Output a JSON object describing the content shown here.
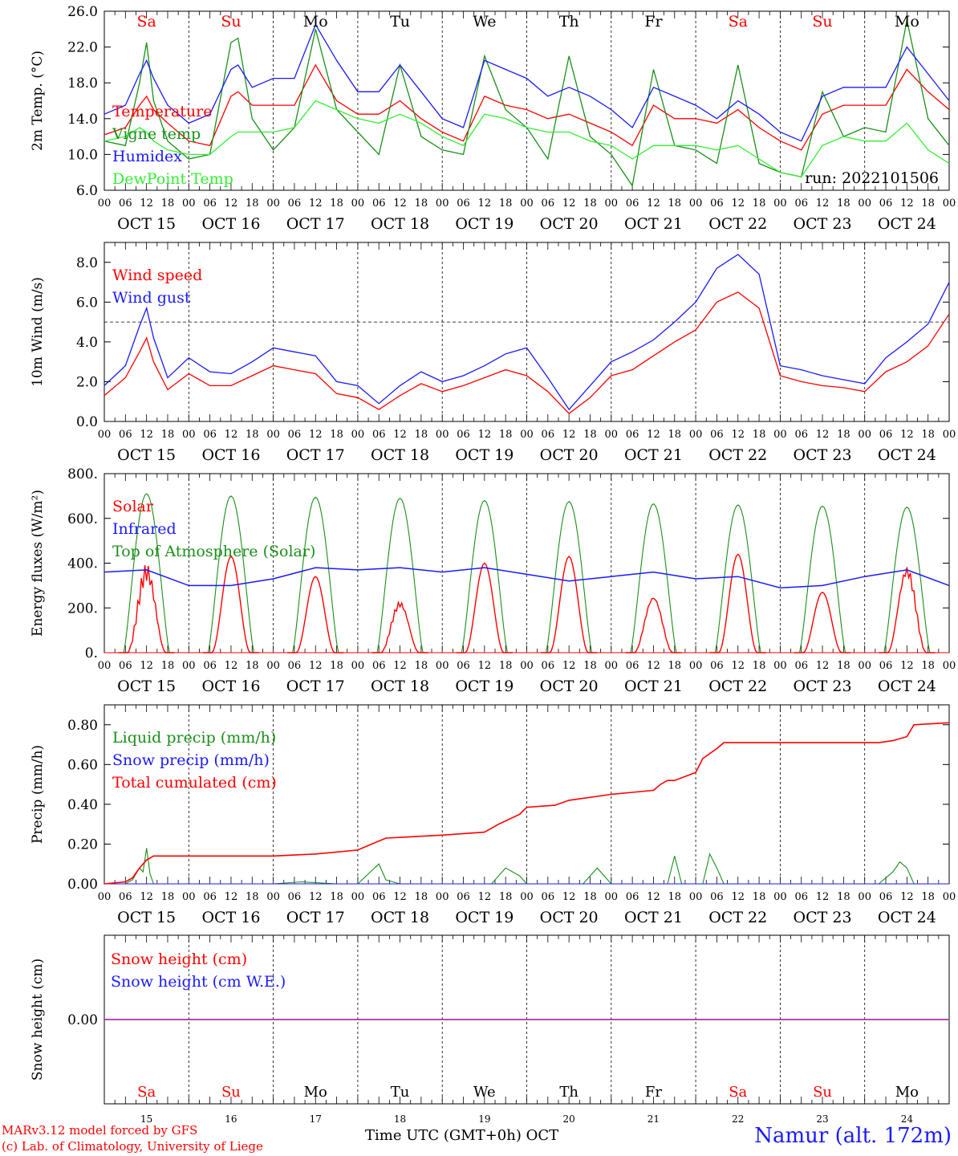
{
  "run_label": "run: 2022101506",
  "days": [
    {
      "abbr": "Sa",
      "weekend": true,
      "date": "OCT 15",
      "num": "15"
    },
    {
      "abbr": "Su",
      "weekend": true,
      "date": "OCT 16",
      "num": "16"
    },
    {
      "abbr": "Mo",
      "weekend": false,
      "date": "OCT 17",
      "num": "17"
    },
    {
      "abbr": "Tu",
      "weekend": false,
      "date": "OCT 18",
      "num": "18"
    },
    {
      "abbr": "We",
      "weekend": false,
      "date": "OCT 19",
      "num": "19"
    },
    {
      "abbr": "Th",
      "weekend": false,
      "date": "OCT 20",
      "num": "20"
    },
    {
      "abbr": "Fr",
      "weekend": false,
      "date": "OCT 21",
      "num": "21"
    },
    {
      "abbr": "Sa",
      "weekend": true,
      "date": "OCT 22",
      "num": "22"
    },
    {
      "abbr": "Su",
      "weekend": true,
      "date": "OCT 23",
      "num": "23"
    },
    {
      "abbr": "Mo",
      "weekend": false,
      "date": "OCT 24",
      "num": "24"
    }
  ],
  "hour_ticks": [
    "00",
    "06",
    "12",
    "18"
  ],
  "final_hour_tick": "00",
  "x_title": "Time UTC (GMT+0h)",
  "x_month": "OCT",
  "credits": [
    "MARv3.12 model forced by GFS",
    "(c) Lab. of Climatology, University of Liege"
  ],
  "station": "Namur (alt. 172m)",
  "colors": {
    "red": "#ff0000",
    "green": "#1a8f1a",
    "blue": "#1a1aff",
    "lightgreen": "#33ee33",
    "purple": "#aa33aa",
    "weekend": "#ff0000"
  },
  "chart_data": [
    {
      "type": "line",
      "id": "temp",
      "ylabel": "2m Temp. (°C)",
      "ylim": [
        6,
        26
      ],
      "yticks": [
        "6.0",
        "10.0",
        "14.0",
        "18.0",
        "22.0",
        "26.0"
      ],
      "x_unit": "hours from Oct 15 00 UTC",
      "x_range": [
        0,
        240
      ],
      "series": [
        {
          "name": "Temperature",
          "color": "red",
          "x": [
            0,
            6,
            10,
            12,
            14,
            18,
            24,
            30,
            36,
            38,
            42,
            48,
            54,
            60,
            66,
            72,
            78,
            84,
            90,
            96,
            102,
            108,
            114,
            120,
            126,
            132,
            138,
            144,
            150,
            156,
            162,
            168,
            174,
            180,
            186,
            192,
            198,
            204,
            210,
            216,
            222,
            228,
            234,
            240
          ],
          "y": [
            12.2,
            13.0,
            15.5,
            16.5,
            15.0,
            13.5,
            11.5,
            11.0,
            16.5,
            17.0,
            15.5,
            15.5,
            15.5,
            20.0,
            16.0,
            14.5,
            14.5,
            16.0,
            14.0,
            12.5,
            11.5,
            16.5,
            15.5,
            15.0,
            14.0,
            14.5,
            13.5,
            12.5,
            11.0,
            15.5,
            14.0,
            14.0,
            13.5,
            15.0,
            13.0,
            11.5,
            10.5,
            14.5,
            15.5,
            15.5,
            15.5,
            19.5,
            17.0,
            15.0
          ]
        },
        {
          "name": "Vigne temp",
          "color": "green",
          "x": [
            0,
            6,
            10,
            12,
            14,
            18,
            24,
            30,
            36,
            38,
            42,
            48,
            54,
            60,
            66,
            72,
            78,
            84,
            90,
            96,
            102,
            108,
            114,
            120,
            126,
            132,
            138,
            144,
            150,
            156,
            162,
            168,
            174,
            180,
            186,
            192,
            198,
            204,
            210,
            216,
            222,
            228,
            234,
            240
          ],
          "y": [
            11.5,
            11.0,
            18.0,
            22.5,
            16.0,
            11.5,
            9.5,
            10.0,
            22.5,
            23.0,
            14.0,
            10.5,
            13.0,
            24.0,
            15.0,
            12.5,
            10.0,
            20.0,
            12.0,
            10.5,
            10.0,
            21.0,
            15.0,
            13.0,
            9.5,
            21.0,
            12.0,
            10.0,
            6.5,
            19.5,
            11.0,
            10.5,
            9.0,
            20.0,
            9.0,
            8.0,
            7.5,
            17.0,
            12.0,
            13.0,
            12.5,
            25.0,
            14.0,
            11.0
          ]
        },
        {
          "name": "Humidex",
          "color": "blue",
          "x": [
            0,
            6,
            10,
            12,
            14,
            18,
            24,
            30,
            36,
            38,
            42,
            48,
            54,
            60,
            66,
            72,
            78,
            84,
            90,
            96,
            102,
            108,
            114,
            120,
            126,
            132,
            138,
            144,
            150,
            156,
            162,
            168,
            174,
            180,
            186,
            192,
            198,
            204,
            210,
            216,
            222,
            228,
            234,
            240
          ],
          "y": [
            14.5,
            15.5,
            19.0,
            20.5,
            18.5,
            15.5,
            13.5,
            14.5,
            19.5,
            20.0,
            17.5,
            18.5,
            18.5,
            24.5,
            20.5,
            17.0,
            17.0,
            20.0,
            17.0,
            14.0,
            13.0,
            20.5,
            19.5,
            18.5,
            16.5,
            17.5,
            16.5,
            15.0,
            13.0,
            17.5,
            16.5,
            15.5,
            14.0,
            16.0,
            14.5,
            12.5,
            11.5,
            16.5,
            17.5,
            17.5,
            17.5,
            22.0,
            19.0,
            16.0
          ]
        },
        {
          "name": "DewPoint Temp",
          "color": "lightgreen",
          "x": [
            0,
            6,
            10,
            12,
            14,
            18,
            24,
            30,
            36,
            38,
            42,
            48,
            54,
            60,
            66,
            72,
            78,
            84,
            90,
            96,
            102,
            108,
            114,
            120,
            126,
            132,
            138,
            144,
            150,
            156,
            162,
            168,
            174,
            180,
            186,
            192,
            198,
            204,
            210,
            216,
            222,
            228,
            234,
            240
          ],
          "y": [
            11.5,
            12.0,
            13.0,
            12.5,
            11.5,
            10.5,
            10.0,
            10.0,
            12.0,
            12.5,
            12.5,
            12.5,
            13.0,
            16.0,
            15.0,
            14.0,
            13.5,
            14.5,
            13.5,
            12.0,
            11.0,
            14.5,
            14.0,
            13.0,
            12.5,
            12.5,
            11.5,
            11.0,
            9.5,
            11.0,
            11.0,
            11.0,
            10.5,
            11.0,
            9.5,
            8.0,
            7.5,
            11.0,
            12.0,
            11.5,
            11.5,
            13.5,
            10.5,
            9.0
          ]
        }
      ]
    },
    {
      "type": "line",
      "id": "wind",
      "ylabel": "10m Wind (m/s)",
      "ylim": [
        0,
        9
      ],
      "yticks": [
        "0.0",
        "2.0",
        "4.0",
        "6.0",
        "8.0"
      ],
      "reference_line": 5,
      "x_unit": "hours from Oct 15 00 UTC",
      "x_range": [
        0,
        240
      ],
      "series": [
        {
          "name": "Wind speed",
          "color": "red",
          "x": [
            0,
            6,
            10,
            12,
            14,
            18,
            24,
            30,
            36,
            42,
            48,
            54,
            60,
            66,
            72,
            78,
            84,
            90,
            96,
            102,
            108,
            114,
            120,
            126,
            132,
            138,
            144,
            150,
            156,
            162,
            168,
            174,
            180,
            186,
            192,
            198,
            204,
            210,
            216,
            222,
            228,
            234,
            240
          ],
          "y": [
            1.3,
            2.2,
            3.5,
            4.2,
            3.0,
            1.6,
            2.4,
            1.8,
            1.8,
            2.3,
            2.8,
            2.6,
            2.4,
            1.4,
            1.2,
            0.6,
            1.3,
            1.9,
            1.5,
            1.8,
            2.2,
            2.6,
            2.3,
            1.5,
            0.4,
            1.2,
            2.3,
            2.6,
            3.3,
            4.0,
            4.6,
            6.0,
            6.5,
            5.7,
            2.3,
            2.0,
            1.8,
            1.7,
            1.5,
            2.5,
            3.0,
            3.8,
            5.4
          ]
        },
        {
          "name": "Wind gust",
          "color": "blue",
          "x": [
            0,
            6,
            10,
            12,
            14,
            18,
            24,
            30,
            36,
            42,
            48,
            54,
            60,
            66,
            72,
            78,
            84,
            90,
            96,
            102,
            108,
            114,
            120,
            126,
            132,
            138,
            144,
            150,
            156,
            162,
            168,
            174,
            180,
            186,
            192,
            198,
            204,
            210,
            216,
            222,
            228,
            234,
            240
          ],
          "y": [
            1.8,
            2.8,
            4.8,
            5.7,
            4.2,
            2.2,
            3.2,
            2.5,
            2.4,
            3.0,
            3.7,
            3.5,
            3.3,
            2.0,
            1.8,
            0.9,
            1.8,
            2.5,
            2.0,
            2.3,
            2.8,
            3.4,
            3.7,
            2.2,
            0.6,
            1.8,
            3.0,
            3.5,
            4.1,
            5.0,
            6.0,
            7.7,
            8.4,
            7.4,
            2.8,
            2.6,
            2.3,
            2.1,
            1.9,
            3.2,
            4.0,
            4.9,
            7.0
          ]
        }
      ]
    },
    {
      "type": "line",
      "id": "energy",
      "ylabel": "Energy fluxes (W/m²)",
      "ylim": [
        0,
        800
      ],
      "yticks": [
        "0.",
        "200.",
        "400.",
        "600.",
        "800."
      ],
      "x_unit": "hours from Oct 15 00 UTC",
      "x_range": [
        0,
        240
      ],
      "solar_peaks": [
        420,
        430,
        340,
        250,
        400,
        430,
        280,
        440,
        270,
        420
      ],
      "toa_peaks": [
        710,
        700,
        695,
        690,
        680,
        675,
        665,
        660,
        655,
        650
      ],
      "series": [
        {
          "name": "Solar",
          "color": "red"
        },
        {
          "name": "Infrared",
          "color": "blue",
          "x": [
            0,
            12,
            24,
            36,
            48,
            60,
            72,
            84,
            96,
            108,
            120,
            132,
            144,
            156,
            168,
            180,
            192,
            204,
            216,
            228,
            240
          ],
          "y": [
            360,
            370,
            300,
            300,
            330,
            380,
            370,
            380,
            360,
            380,
            350,
            320,
            340,
            360,
            330,
            340,
            290,
            300,
            340,
            370,
            300
          ]
        },
        {
          "name": "Top of Atmosphere (Solar)",
          "color": "green"
        }
      ]
    },
    {
      "type": "line",
      "id": "precip",
      "ylabel": "Precip (mm/h)",
      "ylim": [
        0,
        0.9
      ],
      "yticks": [
        "0.00",
        "0.20",
        "0.40",
        "0.60",
        "0.80"
      ],
      "x_unit": "hours from Oct 15 00 UTC",
      "x_range": [
        0,
        240
      ],
      "series": [
        {
          "name": "Liquid precip (mm/h)",
          "color": "green",
          "x": [
            0,
            6,
            8,
            10,
            11,
            12,
            13,
            14,
            16,
            48,
            56,
            66,
            72,
            78,
            80,
            84,
            110,
            114,
            118,
            120,
            136,
            140,
            144,
            160,
            162,
            164,
            170,
            172,
            174,
            176,
            210,
            220,
            224,
            226,
            228,
            230,
            240
          ],
          "y": [
            0,
            0,
            0.02,
            0.08,
            0.06,
            0.18,
            0.05,
            0,
            0,
            0,
            0.01,
            0,
            0,
            0.1,
            0.02,
            0,
            0,
            0.08,
            0.04,
            0,
            0,
            0.08,
            0,
            0,
            0.14,
            0,
            0,
            0.15,
            0.08,
            0,
            0,
            0,
            0.06,
            0.11,
            0.08,
            0,
            0
          ]
        },
        {
          "name": "Snow precip (mm/h)",
          "color": "blue",
          "x": [
            0,
            240
          ],
          "y": [
            0,
            0
          ]
        },
        {
          "name": "Total cumulated (cm)",
          "color": "red",
          "x": [
            0,
            6,
            8,
            10,
            12,
            14,
            48,
            60,
            72,
            76,
            80,
            96,
            108,
            112,
            118,
            120,
            128,
            132,
            144,
            150,
            156,
            158,
            160,
            162,
            168,
            170,
            174,
            176,
            220,
            224,
            228,
            230,
            240
          ],
          "y": [
            0,
            0.01,
            0.03,
            0.08,
            0.12,
            0.14,
            0.14,
            0.15,
            0.17,
            0.2,
            0.23,
            0.245,
            0.26,
            0.3,
            0.35,
            0.385,
            0.395,
            0.42,
            0.45,
            0.46,
            0.47,
            0.5,
            0.52,
            0.52,
            0.56,
            0.63,
            0.68,
            0.71,
            0.71,
            0.72,
            0.74,
            0.8,
            0.81
          ]
        }
      ]
    },
    {
      "type": "line",
      "id": "snow",
      "ylabel": "Snow height (cm)",
      "ylim": [
        -1,
        1
      ],
      "yticks": [
        "0.00"
      ],
      "x_unit": "hours from Oct 15 00 UTC",
      "x_range": [
        0,
        240
      ],
      "series": [
        {
          "name": "Snow height (cm)",
          "color": "red",
          "x": [
            0,
            240
          ],
          "y": [
            0,
            0
          ]
        },
        {
          "name": "Snow height (cm W.E.)",
          "color": "blue",
          "x": [
            0,
            240
          ],
          "y": [
            0,
            0
          ]
        }
      ]
    }
  ]
}
